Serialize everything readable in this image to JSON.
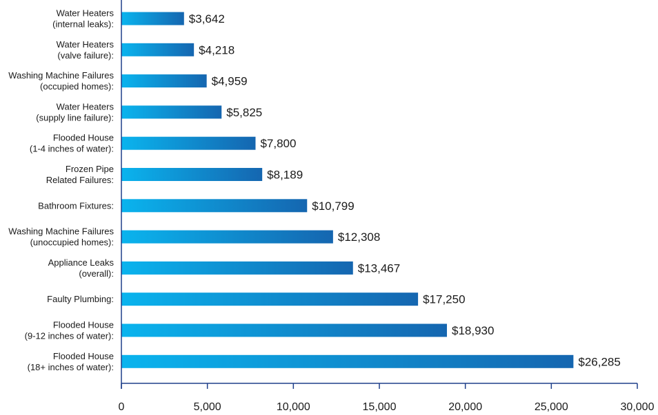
{
  "chart_data": {
    "type": "bar",
    "orientation": "horizontal",
    "title": "",
    "xlabel": "",
    "ylabel": "",
    "xlim": [
      0,
      30000
    ],
    "xticks": [
      0,
      5000,
      10000,
      15000,
      20000,
      25000,
      30000
    ],
    "xtick_labels": [
      "0",
      "5,000",
      "10,000",
      "15,000",
      "20,000",
      "25,000",
      "30,000"
    ],
    "grid": false,
    "legend": "none",
    "bar_gradient": [
      "#0ab4ee",
      "#1566b0"
    ],
    "categories": [
      [
        "Water Heaters",
        "(internal leaks):"
      ],
      [
        "Water Heaters",
        "(valve failure):"
      ],
      [
        "Washing Machine Failures",
        "(occupied homes):"
      ],
      [
        "Water Heaters",
        "(supply line failure):"
      ],
      [
        "Flooded House",
        "(1-4 inches of water):"
      ],
      [
        "Frozen Pipe",
        "Related Failures:"
      ],
      [
        "Bathroom Fixtures:"
      ],
      [
        "Washing Machine Failures",
        "(unoccupied homes):"
      ],
      [
        "Appliance Leaks",
        "(overall):"
      ],
      [
        "Faulty Plumbing:"
      ],
      [
        "Flooded House",
        "(9-12 inches of water):"
      ],
      [
        "Flooded House",
        "(18+ inches of water):"
      ]
    ],
    "values": [
      3642,
      4218,
      4959,
      5825,
      7800,
      8189,
      10799,
      12308,
      13467,
      17250,
      18930,
      26285
    ],
    "value_labels": [
      "$3,642",
      "$4,218",
      "$4,959",
      "$5,825",
      "$7,800",
      "$8,189",
      "$10,799",
      "$12,308",
      "$13,467",
      "$17,250",
      "$18,930",
      "$26,285"
    ]
  }
}
